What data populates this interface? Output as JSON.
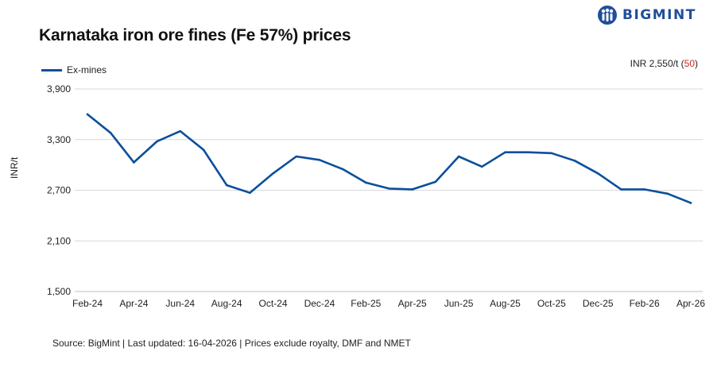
{
  "title": "Karnataka iron ore fines (Fe 57%) prices",
  "brand": {
    "name": "BIGMINT",
    "color": "#1f4e9c"
  },
  "price_note": {
    "text": "INR 2,550/t (",
    "change": "50",
    "close": ")"
  },
  "source": "Source: BigMint | Last updated: 16-04-2026 | Prices exclude royalty, DMF and NMET",
  "chart_data": {
    "type": "line",
    "title": "Karnataka iron ore fines (Fe 57%) prices",
    "xlabel": "",
    "ylabel": "INR/t",
    "ylim": [
      1500,
      3900
    ],
    "yticks": [
      1500,
      2100,
      2700,
      3300,
      3900
    ],
    "ytick_labels": [
      "1,500",
      "2,100",
      "2,700",
      "3,300",
      "3,900"
    ],
    "grid": true,
    "legend_position": "top-left",
    "x_tick_labels": [
      "Feb-24",
      "Apr-24",
      "Jun-24",
      "Aug-24",
      "Oct-24",
      "Dec-24",
      "Feb-25",
      "Apr-25",
      "Jun-25",
      "Aug-25",
      "Oct-25",
      "Dec-25",
      "Feb-26",
      "Apr-26"
    ],
    "x": [
      "Feb-24",
      "Mar-24",
      "Apr-24",
      "May-24",
      "Jun-24",
      "Jul-24",
      "Aug-24",
      "Sep-24",
      "Oct-24",
      "Nov-24",
      "Dec-24",
      "Jan-25",
      "Feb-25",
      "Mar-25",
      "Apr-25",
      "May-25",
      "Jun-25",
      "Jul-25",
      "Aug-25",
      "Sep-25",
      "Oct-25",
      "Nov-25",
      "Dec-25",
      "Jan-26",
      "Feb-26",
      "Mar-26",
      "Apr-26"
    ],
    "series": [
      {
        "name": "Ex-mines",
        "color": "#0b4f9c",
        "values": [
          3600,
          3380,
          3030,
          3280,
          3400,
          3180,
          2760,
          2670,
          2900,
          3100,
          3060,
          2950,
          2790,
          2720,
          2710,
          2800,
          3100,
          2980,
          3150,
          3150,
          3140,
          3050,
          2900,
          2710,
          2710,
          2660,
          2550
        ]
      }
    ]
  }
}
